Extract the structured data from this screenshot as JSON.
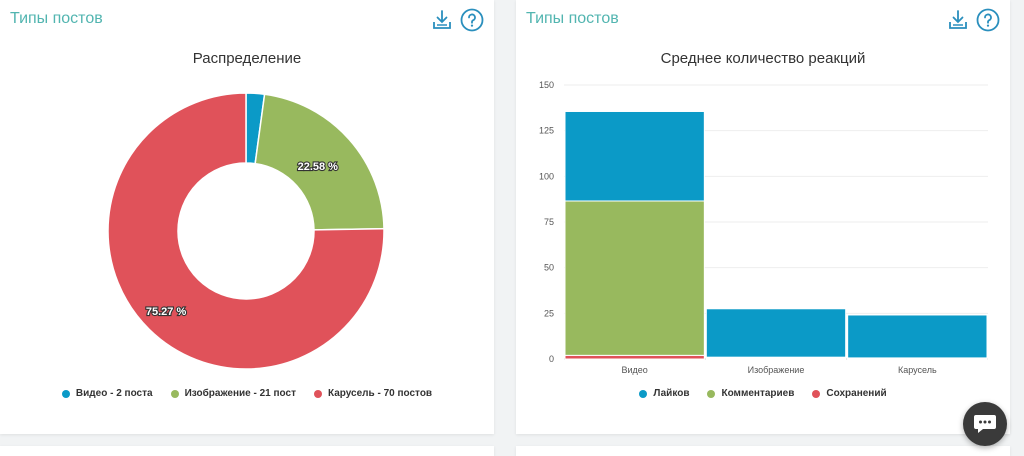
{
  "cards": [
    {
      "title": "Типы постов",
      "chart_data": {
        "type": "pie",
        "title": "Распределение",
        "labels": [
          "Видео - 2 поста",
          "Изображение - 21 пост",
          "Карусель - 70 постов"
        ],
        "values": [
          2,
          21,
          70
        ],
        "data_labels": [
          "",
          "22.58 %",
          "75.27 %"
        ],
        "colors": [
          "#0b9ac7",
          "#98b95e",
          "#e0525a"
        ],
        "legend_position": "bottom"
      }
    },
    {
      "title": "Типы постов",
      "chart_data": {
        "type": "bar",
        "stacked": true,
        "title": "Среднее количество реакций",
        "categories": [
          "Видео",
          "Изображение",
          "Карусель"
        ],
        "series": [
          {
            "name": "Лайков",
            "values": [
              49,
              26.5,
              23.5
            ],
            "color": "#0b9ac7"
          },
          {
            "name": "Комментариев",
            "values": [
              84.5,
              0.5,
              0.3
            ],
            "color": "#98b95e"
          },
          {
            "name": "Сохранений",
            "values": [
              2,
              0.5,
              0.3
            ],
            "color": "#e0525a"
          }
        ],
        "yticks": [
          "0",
          "25",
          "50",
          "75",
          "100",
          "125",
          "150"
        ],
        "ylim": [
          0,
          150
        ],
        "grid": true,
        "legend_position": "bottom"
      }
    }
  ]
}
